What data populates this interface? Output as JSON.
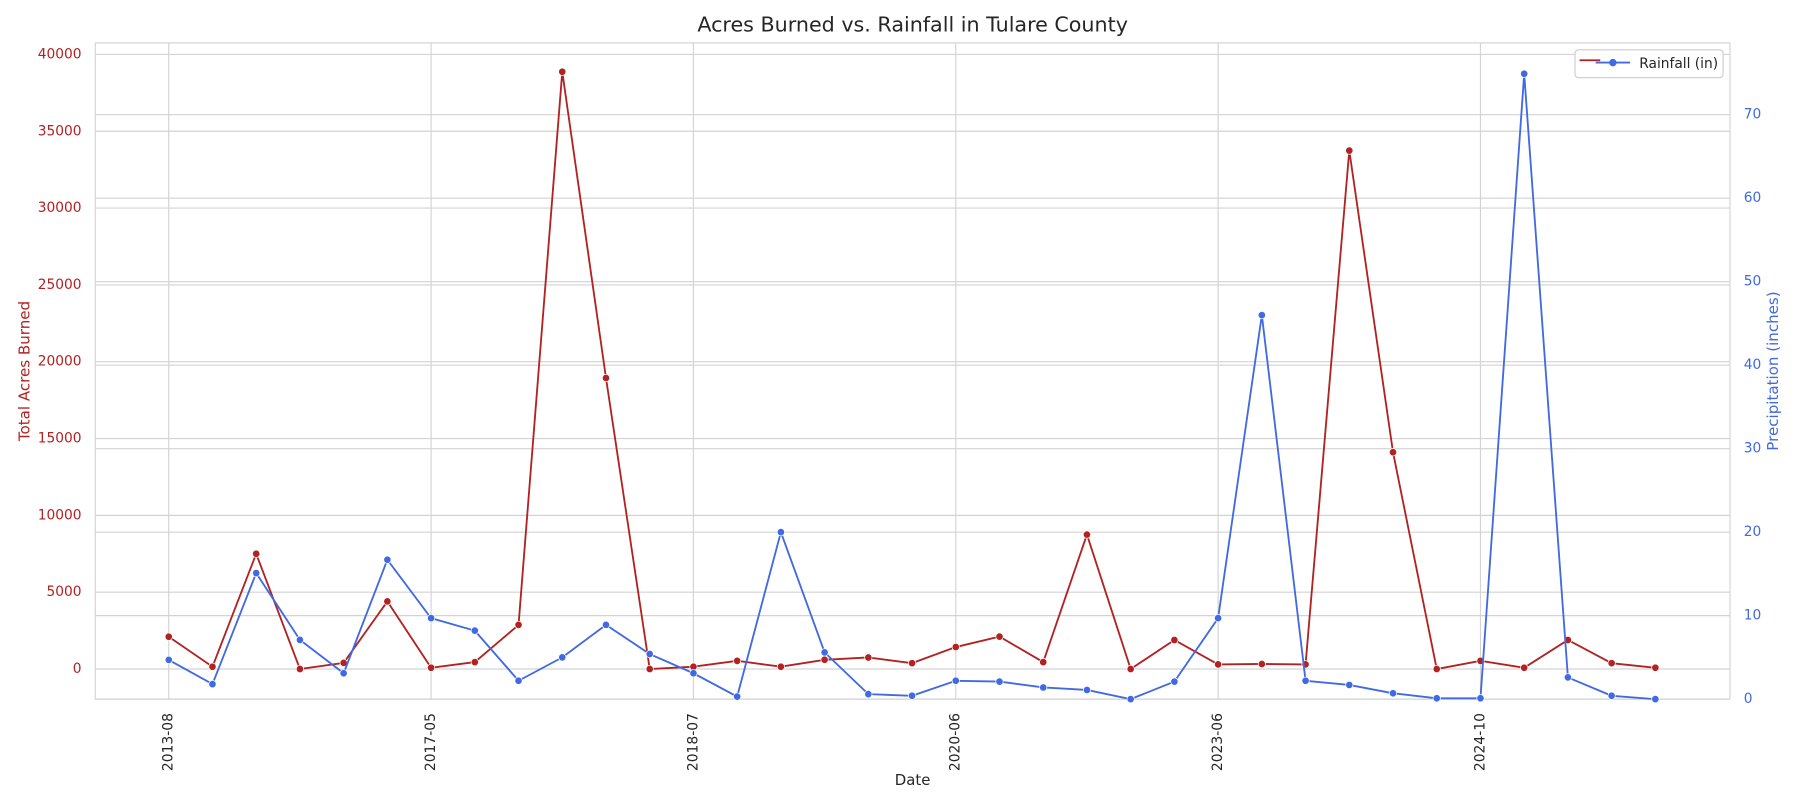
{
  "chart_data": {
    "type": "line",
    "title": "Acres Burned vs. Rainfall in Tulare County",
    "x_label": "Date",
    "y_label": "Total Acres Burned",
    "y2_label": "Precipitation (inches)",
    "categories": [
      "2013-08",
      null,
      null,
      null,
      null,
      null,
      "2017-05",
      null,
      null,
      null,
      null,
      null,
      "2018-07",
      null,
      null,
      null,
      null,
      null,
      "2020-06",
      null,
      null,
      null,
      null,
      null,
      "2023-06",
      null,
      null,
      null,
      null,
      null,
      "2024-10",
      null,
      null,
      null,
      null
    ],
    "series": [
      {
        "color": "#b22222",
        "values": [
          2100,
          150,
          7500,
          0,
          400,
          4400,
          80,
          450,
          2870,
          38870,
          18940,
          0,
          150,
          530,
          150,
          600,
          750,
          380,
          1430,
          2110,
          450,
          8750,
          0,
          1890,
          300,
          330,
          300,
          33740,
          14110,
          0,
          530,
          80,
          1890,
          380,
          80
        ]
      },
      {
        "name": "Rainfall (in)",
        "color": "#4169e1",
        "axis": "y2",
        "values": [
          4.7,
          1.8,
          15.1,
          7.1,
          3.1,
          16.7,
          9.7,
          8.2,
          2.2,
          5.0,
          8.9,
          5.4,
          3.1,
          0.3,
          20.0,
          5.6,
          0.6,
          0.4,
          2.2,
          2.1,
          1.4,
          1.1,
          0,
          2.1,
          9.7,
          46.0,
          2.2,
          1.7,
          0.7,
          0.1,
          0.1,
          74.9,
          2.6,
          0.4,
          0.0
        ]
      }
    ],
    "ylim": [
      -1960,
      40750
    ],
    "yticks": [
      0,
      5000,
      10000,
      15000,
      20000,
      25000,
      30000,
      35000,
      40000
    ],
    "y2lim": [
      0,
      78.6
    ],
    "y2ticks": [
      0,
      10,
      20,
      30,
      40,
      50,
      60,
      70
    ],
    "grid": true,
    "legend": "upper right"
  }
}
